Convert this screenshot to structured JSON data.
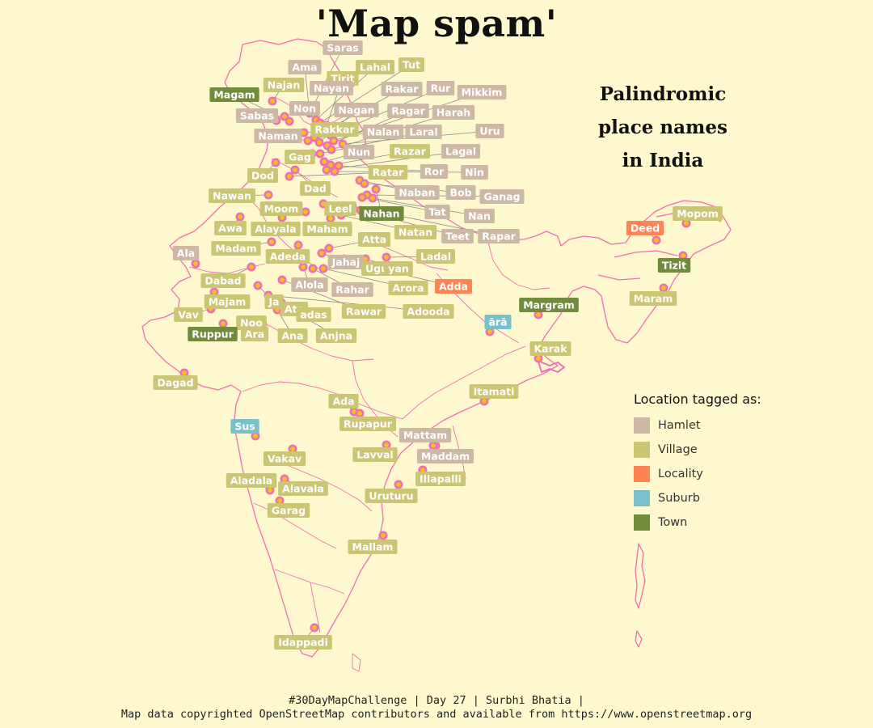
{
  "title": "'Map spam'",
  "subtitle_lines": [
    "Palindromic",
    "place names",
    "in India"
  ],
  "legend": {
    "title": "Location tagged as:",
    "items": [
      {
        "label": "Hamlet",
        "color": "#cdb8a6"
      },
      {
        "label": "Village",
        "color": "#cbc674"
      },
      {
        "label": "Locality",
        "color": "#fd8454"
      },
      {
        "label": "Suburb",
        "color": "#79c1ca"
      },
      {
        "label": "Town",
        "color": "#718b3c"
      }
    ]
  },
  "footer": {
    "line1": "#30DayMapChallenge | Day 27 | Surbhi Bhatia |",
    "line2": "Map data copyrighted OpenStreetMap contributors and available from https://www.openstreetmap.org"
  },
  "map_style": {
    "background": "#fdf8cd",
    "boundary_color": "#f06fb4",
    "marker_fill": "#f5c218",
    "marker_ring": "#f06fb4",
    "leader_color": "#8c8c8c"
  },
  "places": [
    {
      "name": "Saras",
      "type": "Hamlet"
    },
    {
      "name": "Ama",
      "type": "Hamlet"
    },
    {
      "name": "Lahal",
      "type": "Village"
    },
    {
      "name": "Tut",
      "type": "Village"
    },
    {
      "name": "Tirit",
      "type": "Village"
    },
    {
      "name": "Najan",
      "type": "Village"
    },
    {
      "name": "Nayan",
      "type": "Hamlet"
    },
    {
      "name": "Magam",
      "type": "Town"
    },
    {
      "name": "Rakar",
      "type": "Hamlet"
    },
    {
      "name": "Rur",
      "type": "Hamlet"
    },
    {
      "name": "Mikkim",
      "type": "Hamlet"
    },
    {
      "name": "Non",
      "type": "Hamlet"
    },
    {
      "name": "Nagan",
      "type": "Hamlet"
    },
    {
      "name": "Ragar",
      "type": "Hamlet"
    },
    {
      "name": "Harah",
      "type": "Hamlet"
    },
    {
      "name": "Sabas",
      "type": "Hamlet"
    },
    {
      "name": "Rakkar",
      "type": "Village"
    },
    {
      "name": "Nalan",
      "type": "Hamlet"
    },
    {
      "name": "Laral",
      "type": "Hamlet"
    },
    {
      "name": "Uru",
      "type": "Hamlet"
    },
    {
      "name": "Naman",
      "type": "Hamlet"
    },
    {
      "name": "Gag",
      "type": "Village"
    },
    {
      "name": "Nun",
      "type": "Hamlet"
    },
    {
      "name": "Razar",
      "type": "Village"
    },
    {
      "name": "Lagal",
      "type": "Hamlet"
    },
    {
      "name": "Ror",
      "type": "Hamlet"
    },
    {
      "name": "Nin",
      "type": "Hamlet"
    },
    {
      "name": "Dod",
      "type": "Village"
    },
    {
      "name": "Ratar",
      "type": "Village"
    },
    {
      "name": "Dad",
      "type": "Village"
    },
    {
      "name": "Naban",
      "type": "Hamlet"
    },
    {
      "name": "Bob",
      "type": "Hamlet"
    },
    {
      "name": "Ganag",
      "type": "Hamlet"
    },
    {
      "name": "Nawan",
      "type": "Village"
    },
    {
      "name": "Moom",
      "type": "Village"
    },
    {
      "name": "Leel",
      "type": "Village"
    },
    {
      "name": "Nahan",
      "type": "Town"
    },
    {
      "name": "Tat",
      "type": "Hamlet"
    },
    {
      "name": "Nan",
      "type": "Hamlet"
    },
    {
      "name": "Awa",
      "type": "Village"
    },
    {
      "name": "Alayala",
      "type": "Village"
    },
    {
      "name": "Maham",
      "type": "Village"
    },
    {
      "name": "Natan",
      "type": "Village"
    },
    {
      "name": "Teet",
      "type": "Hamlet"
    },
    {
      "name": "Rapar",
      "type": "Hamlet"
    },
    {
      "name": "Atta",
      "type": "Village"
    },
    {
      "name": "Ala",
      "type": "Hamlet"
    },
    {
      "name": "Madam",
      "type": "Village"
    },
    {
      "name": "Adeda",
      "type": "Village"
    },
    {
      "name": "Jahaj",
      "type": "Hamlet"
    },
    {
      "name": "Ladal",
      "type": "Village"
    },
    {
      "name": "Ugu",
      "type": "Village"
    },
    {
      "name": "yan",
      "type": "Village"
    },
    {
      "name": "Dabad",
      "type": "Village"
    },
    {
      "name": "Alola",
      "type": "Hamlet"
    },
    {
      "name": "Rahar",
      "type": "Hamlet"
    },
    {
      "name": "Arora",
      "type": "Village"
    },
    {
      "name": "Adda",
      "type": "Locality"
    },
    {
      "name": "Majam",
      "type": "Village"
    },
    {
      "name": "Ja",
      "type": "Village"
    },
    {
      "name": "Ata",
      "type": "Village"
    },
    {
      "name": "adas",
      "type": "Village"
    },
    {
      "name": "Rawar",
      "type": "Village"
    },
    {
      "name": "Adooda",
      "type": "Village"
    },
    {
      "name": "Vav",
      "type": "Village"
    },
    {
      "name": "Noo",
      "type": "Village"
    },
    {
      "name": "Ruppur",
      "type": "Town"
    },
    {
      "name": "Ara",
      "type": "Village"
    },
    {
      "name": "Ana",
      "type": "Village"
    },
    {
      "name": "Anjna",
      "type": "Village"
    },
    {
      "name": "Dagad",
      "type": "Village"
    },
    {
      "name": "Deed",
      "type": "Locality"
    },
    {
      "name": "Mopom",
      "type": "Village"
    },
    {
      "name": "Tizit",
      "type": "Town"
    },
    {
      "name": "Maram",
      "type": "Village"
    },
    {
      "name": "Margram",
      "type": "Town"
    },
    {
      "name": "ārā",
      "type": "Suburb"
    },
    {
      "name": "Karak",
      "type": "Village"
    },
    {
      "name": "Itamati",
      "type": "Village"
    },
    {
      "name": "Ada",
      "type": "Village"
    },
    {
      "name": "Rupapur",
      "type": "Village"
    },
    {
      "name": "Sus",
      "type": "Suburb"
    },
    {
      "name": "Mattam",
      "type": "Hamlet"
    },
    {
      "name": "Lavval",
      "type": "Village"
    },
    {
      "name": "Maddam",
      "type": "Hamlet"
    },
    {
      "name": "Vakav",
      "type": "Village"
    },
    {
      "name": "Illapalli",
      "type": "Village"
    },
    {
      "name": "Aladala",
      "type": "Village"
    },
    {
      "name": "Alavala",
      "type": "Village"
    },
    {
      "name": "Uruturu",
      "type": "Village"
    },
    {
      "name": "Garag",
      "type": "Village"
    },
    {
      "name": "Mallam",
      "type": "Village"
    },
    {
      "name": "Idappadi",
      "type": "Village"
    }
  ]
}
